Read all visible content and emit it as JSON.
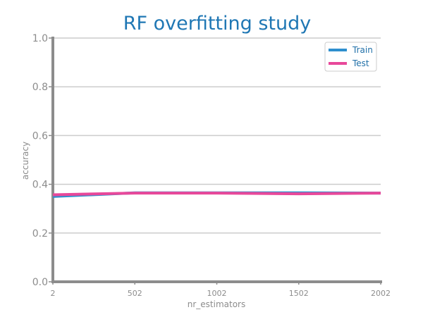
{
  "chart_data": {
    "type": "line",
    "title": "RF overfitting study",
    "xlabel": "nr_estimators",
    "ylabel": "accuracy",
    "x": [
      2,
      502,
      1002,
      1502,
      2002
    ],
    "xticks": [
      "2",
      "502",
      "1002",
      "1502",
      "2002"
    ],
    "yticks": [
      "0.0",
      "0.2",
      "0.4",
      "0.6",
      "0.8",
      "1.0"
    ],
    "xlim": [
      2,
      2002
    ],
    "ylim": [
      0.0,
      1.0
    ],
    "grid": true,
    "legend_position": "top-right",
    "series": [
      {
        "name": "Train",
        "color": "#2e8fce",
        "values": [
          0.35,
          0.365,
          0.365,
          0.365,
          0.364
        ]
      },
      {
        "name": "Test",
        "color": "#e8489a",
        "values": [
          0.357,
          0.364,
          0.364,
          0.361,
          0.364
        ]
      }
    ]
  }
}
